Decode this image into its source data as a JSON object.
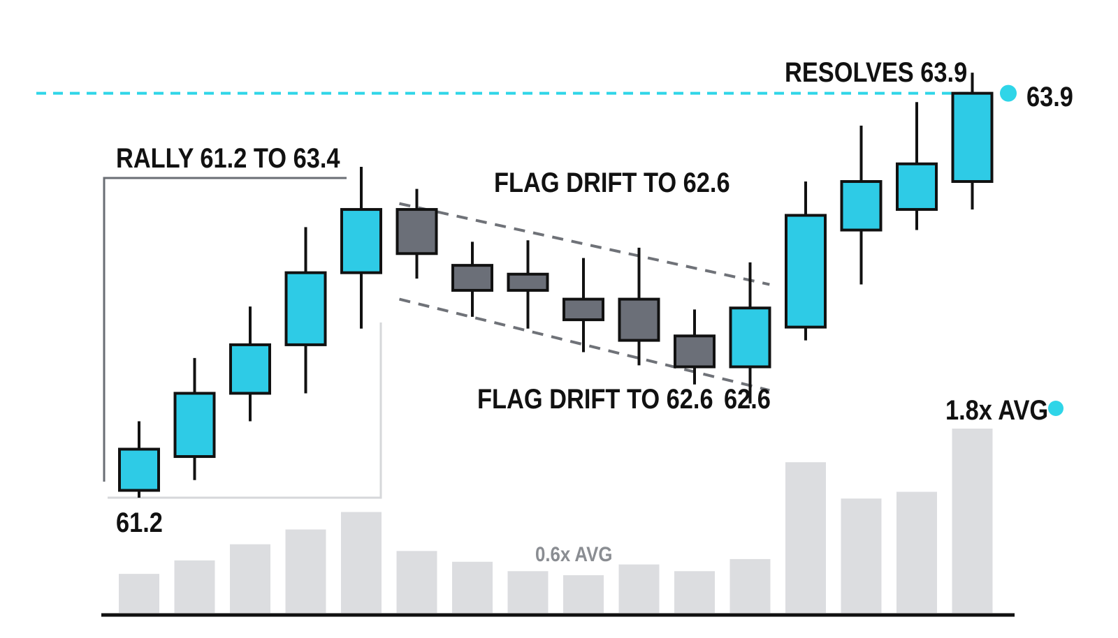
{
  "chart_data": {
    "type": "candlestick",
    "candles": [
      {
        "open": 61.2,
        "close": 61.48,
        "high": 61.67,
        "low": 61.15,
        "direction": "up"
      },
      {
        "open": 61.43,
        "close": 61.86,
        "high": 62.1,
        "low": 61.27,
        "direction": "up"
      },
      {
        "open": 61.86,
        "close": 62.19,
        "high": 62.45,
        "low": 61.67,
        "direction": "up"
      },
      {
        "open": 62.19,
        "close": 62.68,
        "high": 62.99,
        "low": 61.86,
        "direction": "up"
      },
      {
        "open": 62.68,
        "close": 63.11,
        "high": 63.4,
        "low": 62.3,
        "direction": "up"
      },
      {
        "open": 63.11,
        "close": 62.81,
        "high": 63.25,
        "low": 62.64,
        "direction": "down"
      },
      {
        "open": 62.73,
        "close": 62.56,
        "high": 62.89,
        "low": 62.38,
        "direction": "down"
      },
      {
        "open": 62.67,
        "close": 62.56,
        "high": 62.9,
        "low": 62.3,
        "direction": "down"
      },
      {
        "open": 62.5,
        "close": 62.36,
        "high": 62.78,
        "low": 62.14,
        "direction": "down"
      },
      {
        "open": 62.5,
        "close": 62.22,
        "high": 62.85,
        "low": 62.05,
        "direction": "down"
      },
      {
        "open": 62.25,
        "close": 62.04,
        "high": 62.43,
        "low": 61.92,
        "direction": "down"
      },
      {
        "open": 62.04,
        "close": 62.44,
        "high": 62.75,
        "low": 61.79,
        "direction": "up"
      },
      {
        "open": 62.31,
        "close": 63.07,
        "high": 63.3,
        "low": 62.22,
        "direction": "up"
      },
      {
        "open": 62.97,
        "close": 63.3,
        "high": 63.68,
        "low": 62.6,
        "direction": "up"
      },
      {
        "open": 63.11,
        "close": 63.42,
        "high": 63.84,
        "low": 62.97,
        "direction": "up"
      },
      {
        "open": 63.3,
        "close": 63.9,
        "high": 64.04,
        "low": 63.11,
        "direction": "up"
      }
    ],
    "volume_relative": [
      0.29,
      0.39,
      0.51,
      0.62,
      0.75,
      0.46,
      0.38,
      0.31,
      0.28,
      0.36,
      0.31,
      0.4,
      1.12,
      0.85,
      0.9,
      1.37
    ],
    "levels": [
      {
        "value": 63.9,
        "style": "dashed",
        "color": "#2fd5e8"
      }
    ],
    "flag_channel": {
      "upper": [
        {
          "candle": 5,
          "price": 63.15
        },
        {
          "candle": 11.35,
          "price": 62.6
        }
      ],
      "lower": [
        {
          "candle": 5,
          "price": 62.5
        },
        {
          "candle": 11.35,
          "price": 61.88
        }
      ]
    },
    "rally_bracket": {
      "from_candle": 0,
      "to_candle": 4
    },
    "annotations": {
      "rally": "RALLY 61.2 TO 63.4",
      "flag_upper": "FLAG DRIFT TO 62.6",
      "flag_lower": "FLAG DRIFT TO 62.6",
      "flag_value": "62.6",
      "resolves": "RESOLVES 63.9",
      "level_value": "63.9",
      "start_value": "61.2",
      "volume_low": "0.6x AVG",
      "volume_high": "1.8x AVG"
    },
    "colors": {
      "up": "#2ecbe6",
      "down": "#6b6f78",
      "outline": "#111111",
      "volume": "#dcdde0",
      "channel": "#6f7278",
      "bracket": "#6a6e74",
      "bracket_light": "#d6d7da",
      "level": "#2fd5e8",
      "text": "#111111",
      "muted_text": "#8a8d92",
      "baseline": "#111111"
    }
  }
}
